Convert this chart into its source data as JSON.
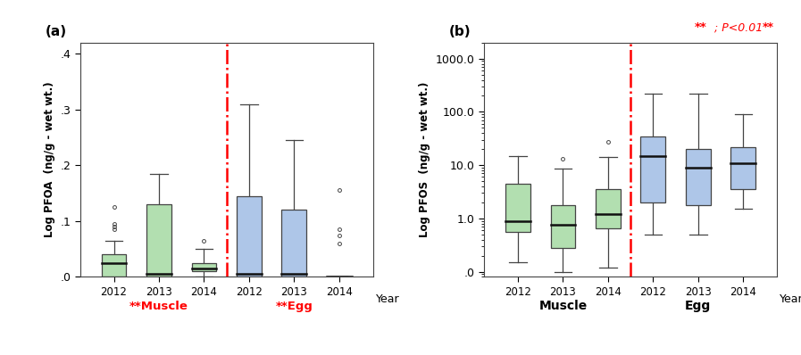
{
  "panel_a": {
    "title": "(a)",
    "ylabel": "Log PFOA  (ng/g - wet wt.)",
    "muscle_label": "**Muscle",
    "egg_label": "**Egg",
    "label_color": "red",
    "ylim": [
      0.0,
      0.42
    ],
    "yticks": [
      0.0,
      0.1,
      0.2,
      0.3,
      0.4
    ],
    "ytick_labels": [
      ".0",
      ".1",
      ".2",
      ".3",
      ".4"
    ],
    "muscle_boxes": [
      {
        "q1": 0.0,
        "q2": 0.025,
        "q3": 0.04,
        "whislo": 0.0,
        "whishi": 0.065,
        "fliers": [
          0.085,
          0.09,
          0.095,
          0.125
        ]
      },
      {
        "q1": 0.0,
        "q2": 0.005,
        "q3": 0.13,
        "whislo": 0.0,
        "whishi": 0.185,
        "fliers": []
      },
      {
        "q1": 0.01,
        "q2": 0.015,
        "q3": 0.025,
        "whislo": 0.0,
        "whishi": 0.05,
        "fliers": [
          0.065
        ]
      }
    ],
    "egg_boxes": [
      {
        "q1": 0.0,
        "q2": 0.005,
        "q3": 0.145,
        "whislo": 0.0,
        "whishi": 0.31,
        "fliers": []
      },
      {
        "q1": 0.0,
        "q2": 0.005,
        "q3": 0.12,
        "whislo": 0.0,
        "whishi": 0.245,
        "fliers": []
      },
      {
        "q1": 0.0,
        "q2": 0.0,
        "q3": 0.0,
        "whislo": 0.0,
        "whishi": 0.0,
        "fliers": [
          0.06,
          0.075,
          0.085,
          0.155
        ]
      }
    ],
    "muscle_color": "#b2dfb0",
    "egg_color": "#aec6e8"
  },
  "panel_b": {
    "title": "(b)",
    "ylabel": "Log PFOS  (ng/g - wet wt.)",
    "muscle_label": "Muscle",
    "egg_label": "Egg",
    "label_color": "black",
    "annotation_bold": "**",
    "annotation_rest": "; P<0.01",
    "ylim_log": [
      0.08,
      2000
    ],
    "yticks": [
      0.1,
      1.0,
      10.0,
      100.0,
      1000.0
    ],
    "ytick_labels": [
      ".0",
      "1.0",
      "10.0",
      "100.0",
      "1000.0"
    ],
    "muscle_boxes": [
      {
        "q1": 0.55,
        "q2": 0.9,
        "q3": 4.5,
        "whislo": 0.15,
        "whishi": 15.0,
        "fliers": []
      },
      {
        "q1": 0.28,
        "q2": 0.75,
        "q3": 1.8,
        "whislo": 0.1,
        "whishi": 8.5,
        "fliers": [
          13.0
        ]
      },
      {
        "q1": 0.65,
        "q2": 1.2,
        "q3": 3.5,
        "whislo": 0.12,
        "whishi": 14.0,
        "fliers": [
          27.0
        ]
      }
    ],
    "egg_boxes": [
      {
        "q1": 2.0,
        "q2": 15.0,
        "q3": 35.0,
        "whislo": 0.5,
        "whishi": 220.0,
        "fliers": []
      },
      {
        "q1": 1.8,
        "q2": 9.0,
        "q3": 20.0,
        "whislo": 0.5,
        "whishi": 220.0,
        "fliers": []
      },
      {
        "q1": 3.5,
        "q2": 11.0,
        "q3": 22.0,
        "whislo": 1.5,
        "whishi": 90.0,
        "fliers": []
      }
    ],
    "muscle_color": "#b2dfb0",
    "egg_color": "#aec6e8"
  }
}
